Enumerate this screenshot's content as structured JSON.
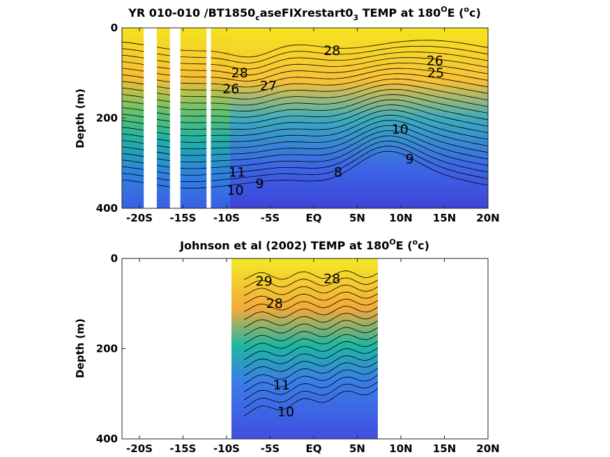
{
  "chart_data": [
    {
      "type": "contour",
      "title": "YR 010-010 /BT1850_caseFIXrestart0_3 TEMP at 180°E (°c)",
      "title_parts": {
        "a": "YR 010-010 /BT1850",
        "sub1": "c",
        "b": "aseFIXrestart0",
        "sub2": "3",
        "c": " TEMP at 180",
        "deg1": "O",
        "d": "E (",
        "deg2": "o",
        "e": "c)"
      },
      "xlabel": "",
      "ylabel": "Depth (m)",
      "xlim": [
        -22,
        20
      ],
      "ylim": [
        400,
        0
      ],
      "x_ticks": [
        -20,
        -15,
        -10,
        -5,
        0,
        5,
        10,
        15,
        20
      ],
      "x_tick_labels": [
        "-20S",
        "-15S",
        "-10S",
        "-5S",
        "EQ",
        "5N",
        "10N",
        "15N",
        "20N"
      ],
      "y_ticks": [
        0,
        200,
        400
      ],
      "y_tick_labels": [
        "0",
        "200",
        "400"
      ],
      "data_gaps_lat": [
        [
          -19.5,
          -18.0
        ],
        [
          -16.5,
          -15.3
        ],
        [
          -12.3,
          -11.8
        ]
      ],
      "colormap": "parula",
      "colorscale_range": [
        6,
        30
      ],
      "contour_interval": 1,
      "contour_labels": [
        {
          "text": "28",
          "x": 2.1,
          "y": 60
        },
        {
          "text": "28",
          "x": -8.5,
          "y": 110
        },
        {
          "text": "27",
          "x": -5.2,
          "y": 138
        },
        {
          "text": "26",
          "x": -9.5,
          "y": 145
        },
        {
          "text": "26",
          "x": 13.9,
          "y": 83
        },
        {
          "text": "25",
          "x": 14.0,
          "y": 110
        },
        {
          "text": "11",
          "x": -8.8,
          "y": 330
        },
        {
          "text": "10",
          "x": -9.0,
          "y": 370
        },
        {
          "text": "9",
          "x": -6.2,
          "y": 355
        },
        {
          "text": "8",
          "x": 2.8,
          "y": 330
        },
        {
          "text": "9",
          "x": 11.0,
          "y": 300
        },
        {
          "text": "10",
          "x": 9.9,
          "y": 235
        }
      ]
    },
    {
      "type": "contour",
      "title": "Johnson et al (2002) TEMP at 180°E (°c)",
      "title_parts": {
        "a": "Johnson et al (2002) TEMP at 180",
        "deg1": "O",
        "d": "E (",
        "deg2": "o",
        "e": "c)"
      },
      "xlabel": "",
      "ylabel": "Depth (m)",
      "xlim": [
        -22,
        20
      ],
      "ylim": [
        400,
        0
      ],
      "x_ticks": [
        -20,
        -15,
        -10,
        -5,
        0,
        5,
        10,
        15,
        20
      ],
      "x_tick_labels": [
        "-20S",
        "-15S",
        "-10S",
        "-5S",
        "EQ",
        "5N",
        "10N",
        "15N",
        "20N"
      ],
      "y_ticks": [
        0,
        200,
        400
      ],
      "y_tick_labels": [
        "0",
        "200",
        "400"
      ],
      "data_lat_range": [
        -8,
        8
      ],
      "colormap": "parula",
      "colorscale_range": [
        6,
        30
      ],
      "contour_interval": 1,
      "contour_labels": [
        {
          "text": "29",
          "x": -5.7,
          "y": 60
        },
        {
          "text": "28",
          "x": 2.1,
          "y": 55
        },
        {
          "text": "28",
          "x": -4.5,
          "y": 110
        },
        {
          "text": "11",
          "x": -3.7,
          "y": 290
        },
        {
          "text": "10",
          "x": -3.2,
          "y": 350
        }
      ]
    }
  ]
}
